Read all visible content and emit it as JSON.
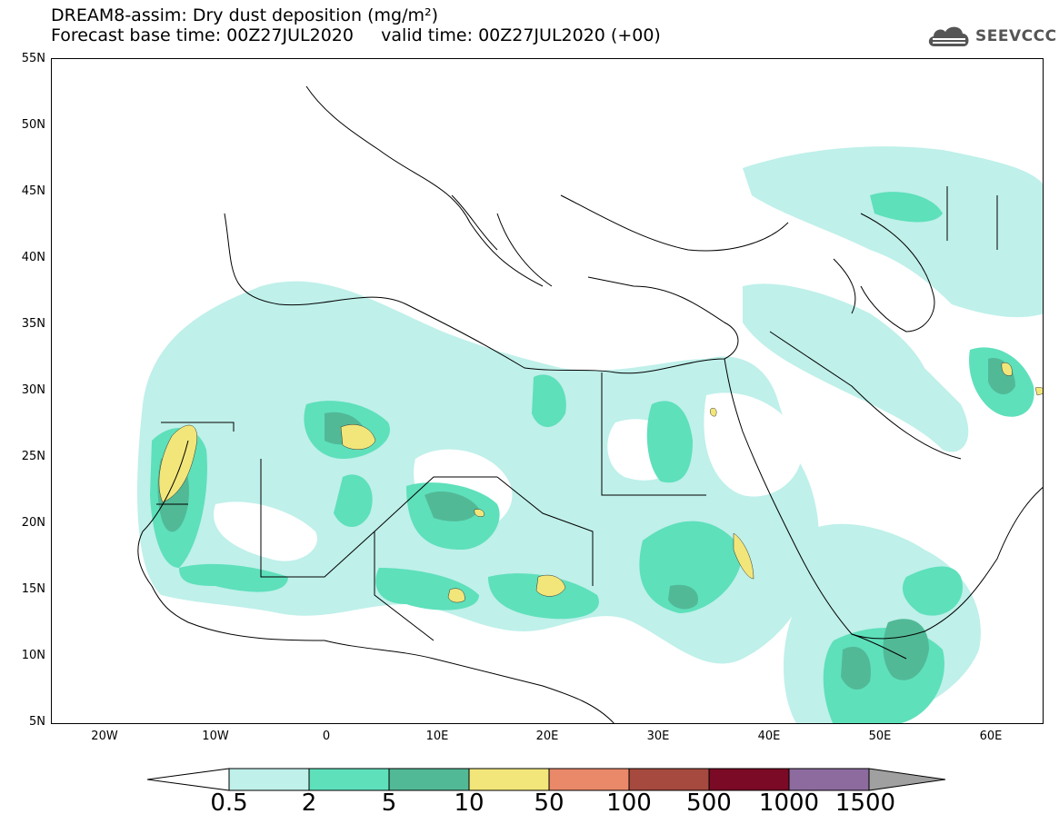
{
  "title": {
    "line1": "DREAM8-assim: Dry dust deposition (mg/m²)",
    "line2": "Forecast base time: 00Z27JUL2020     valid time: 00Z27JUL2020 (+00)"
  },
  "logo": {
    "text": "SEEVCCC",
    "icon": "cloud-logo-icon"
  },
  "map": {
    "projection": "lat-lon",
    "lon_range": [
      -26,
      65
    ],
    "lat_range": [
      5,
      55
    ],
    "lat_ticks": [
      "55N",
      "50N",
      "45N",
      "40N",
      "35N",
      "30N",
      "25N",
      "20N",
      "15N",
      "10N",
      "5N"
    ],
    "lon_ticks": [
      "20W",
      "10W",
      "0",
      "10E",
      "20E",
      "30E",
      "40E",
      "50E",
      "60E"
    ]
  },
  "colorbar": {
    "labels": [
      "0.5",
      "2",
      "5",
      "10",
      "50",
      "100",
      "500",
      "1000",
      "1500"
    ],
    "colors": [
      "#bff0ea",
      "#5ee0bb",
      "#52b996",
      "#f2e67a",
      "#e9896a",
      "#a64a3f",
      "#7a0a25",
      "#8d6b9e"
    ],
    "under_color": "#ffffff",
    "over_color": "#a0a0a0"
  }
}
